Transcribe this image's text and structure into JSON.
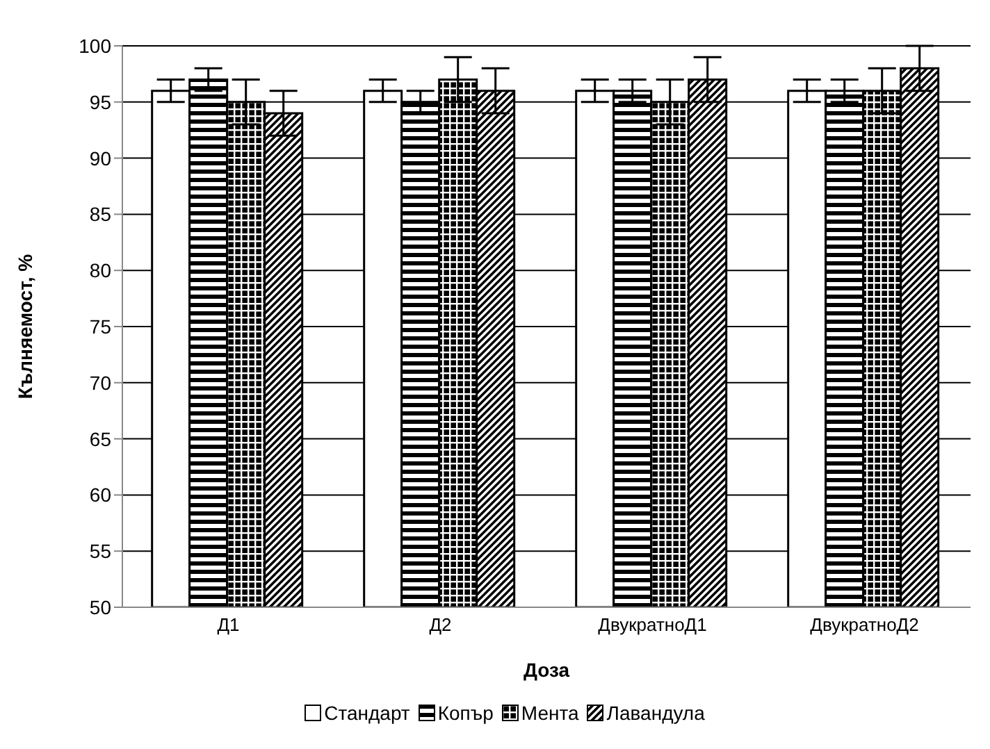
{
  "chart_data": {
    "type": "bar",
    "xlabel": "Доза",
    "ylabel": "Кълняемост, %",
    "categories": [
      "Д1",
      "Д2",
      "ДвукратноД1",
      "ДвукратноД2"
    ],
    "series": [
      {
        "name": "Стандарт",
        "color": "#ffffff",
        "values": [
          96,
          96,
          96,
          96
        ],
        "errors": [
          1,
          1,
          1,
          1
        ]
      },
      {
        "name": "Копър",
        "color": "#000000",
        "values": [
          97,
          95,
          96,
          96
        ],
        "errors": [
          1,
          1,
          1,
          1
        ]
      },
      {
        "name": "Мента",
        "color": "#000000",
        "values": [
          95,
          97,
          95,
          96
        ],
        "errors": [
          2,
          2,
          2,
          2
        ]
      },
      {
        "name": "Лавандула",
        "color": "#000000",
        "values": [
          94,
          96,
          97,
          98
        ],
        "errors": [
          2,
          2,
          2,
          2
        ]
      }
    ],
    "ylim": [
      50,
      100
    ],
    "yticks": [
      50,
      55,
      60,
      65,
      70,
      75,
      80,
      85,
      90,
      95,
      100
    ],
    "grid": "y",
    "legend": "bottom"
  }
}
